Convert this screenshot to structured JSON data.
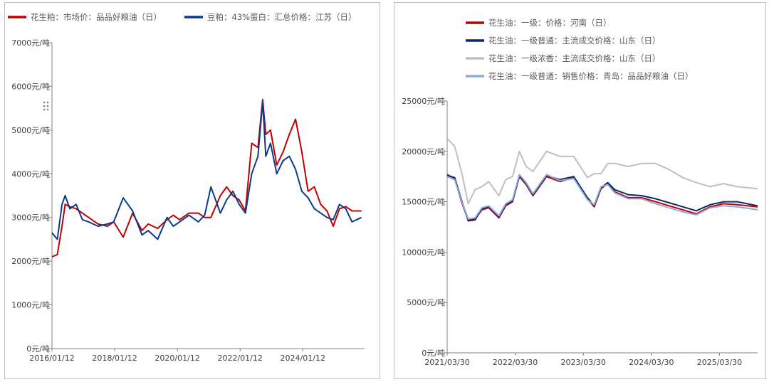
{
  "chart_data": [
    {
      "type": "line",
      "title": "",
      "xlabel": "",
      "ylabel": "",
      "ylim": [
        0,
        7000
      ],
      "y_ticks": [
        "0元/吨",
        "1000元/吨",
        "2000元/吨",
        "3000元/吨",
        "4000元/吨",
        "5000元/吨",
        "6000元/吨",
        "7000元/吨"
      ],
      "x_ticks": [
        "2016/01/12",
        "2018/01/12",
        "2020/01/12",
        "2022/01/12",
        "2024/01/12"
      ],
      "x_tick_values": [
        2016.03,
        2018.03,
        2020.03,
        2022.03,
        2024.03
      ],
      "xlim": [
        2016.03,
        2026.0
      ],
      "legend_position": "top",
      "series": [
        {
          "name": "花生粕：市场价：品品好粮油（日）",
          "color": "#C00000",
          "x": [
            2016.03,
            2016.2,
            2016.35,
            2016.45,
            2016.6,
            2016.8,
            2017.0,
            2017.2,
            2017.5,
            2017.8,
            2018.0,
            2018.3,
            2018.6,
            2018.9,
            2019.1,
            2019.4,
            2019.7,
            2019.9,
            2020.1,
            2020.4,
            2020.7,
            2020.9,
            2021.1,
            2021.4,
            2021.6,
            2021.8,
            2022.0,
            2022.2,
            2022.4,
            2022.6,
            2022.75,
            2022.85,
            2023.0,
            2023.2,
            2023.4,
            2023.6,
            2023.8,
            2024.0,
            2024.2,
            2024.4,
            2024.6,
            2024.8,
            2025.0,
            2025.2,
            2025.4,
            2025.6,
            2025.9
          ],
          "values": [
            2100,
            2150,
            2800,
            3300,
            3250,
            3200,
            3100,
            3000,
            2850,
            2800,
            2900,
            2550,
            3100,
            2700,
            2850,
            2750,
            2950,
            3050,
            2950,
            3100,
            3100,
            3000,
            3000,
            3500,
            3700,
            3500,
            3400,
            3150,
            4700,
            4600,
            5700,
            4900,
            5000,
            4200,
            4500,
            4900,
            5250,
            4500,
            3600,
            3700,
            3300,
            3150,
            2800,
            3200,
            3250,
            3150,
            3150
          ]
        },
        {
          "name": "豆粕：43%蛋白：汇总价格：江苏（日）",
          "color": "#0B3A8C",
          "x": [
            2016.03,
            2016.2,
            2016.35,
            2016.45,
            2016.6,
            2016.8,
            2017.0,
            2017.2,
            2017.5,
            2017.8,
            2018.0,
            2018.3,
            2018.6,
            2018.9,
            2019.1,
            2019.4,
            2019.7,
            2019.9,
            2020.1,
            2020.4,
            2020.7,
            2020.9,
            2021.1,
            2021.4,
            2021.6,
            2021.8,
            2022.0,
            2022.2,
            2022.4,
            2022.6,
            2022.75,
            2022.85,
            2023.0,
            2023.2,
            2023.4,
            2023.6,
            2023.8,
            2024.0,
            2024.2,
            2024.4,
            2024.6,
            2024.8,
            2025.0,
            2025.2,
            2025.4,
            2025.6,
            2025.9
          ],
          "values": [
            2650,
            2500,
            3300,
            3500,
            3200,
            3300,
            2950,
            2900,
            2800,
            2850,
            2900,
            3450,
            3150,
            2600,
            2700,
            2500,
            3000,
            2800,
            2900,
            3050,
            2900,
            3050,
            3700,
            3100,
            3400,
            3600,
            3300,
            3100,
            4000,
            4400,
            5650,
            4400,
            4700,
            4000,
            4300,
            4400,
            4100,
            3600,
            3450,
            3200,
            3100,
            3000,
            2950,
            3300,
            3200,
            2900,
            3000
          ]
        }
      ]
    },
    {
      "type": "line",
      "title": "",
      "xlabel": "",
      "ylabel": "",
      "ylim": [
        0,
        25000
      ],
      "y_ticks": [
        "0元/吨",
        "5000元/吨",
        "10000元/吨",
        "15000元/吨",
        "20000元/吨",
        "25000元/吨"
      ],
      "x_ticks": [
        "2021/03/30",
        "2022/03/30",
        "2023/03/30",
        "2024/03/30",
        "2025/03/30"
      ],
      "x_tick_values": [
        2021.24,
        2022.24,
        2023.24,
        2024.24,
        2025.24
      ],
      "xlim": [
        2021.24,
        2025.8
      ],
      "legend_position": "top",
      "series": [
        {
          "name": "花生油：一级：价格：河南（日）",
          "color": "#C00000",
          "x": [
            2021.24,
            2021.35,
            2021.45,
            2021.55,
            2021.65,
            2021.75,
            2021.85,
            2022.0,
            2022.1,
            2022.2,
            2022.3,
            2022.4,
            2022.5,
            2022.7,
            2022.9,
            2023.1,
            2023.3,
            2023.4,
            2023.5,
            2023.6,
            2023.7,
            2023.9,
            2024.1,
            2024.3,
            2024.5,
            2024.7,
            2024.9,
            2025.1,
            2025.3,
            2025.5,
            2025.8
          ],
          "values": [
            17700,
            17300,
            15000,
            13200,
            13300,
            14200,
            14400,
            13400,
            14600,
            15000,
            17500,
            16700,
            15600,
            17500,
            17000,
            17400,
            15300,
            14500,
            16300,
            16800,
            16000,
            15400,
            15400,
            15000,
            14600,
            14200,
            13800,
            14500,
            14800,
            14700,
            14500
          ]
        },
        {
          "name": "花生油：一级普通：主流成交价格：山东（日）",
          "color": "#0B2A6B",
          "x": [
            2021.24,
            2021.35,
            2021.45,
            2021.55,
            2021.65,
            2021.75,
            2021.85,
            2022.0,
            2022.1,
            2022.2,
            2022.3,
            2022.4,
            2022.5,
            2022.7,
            2022.9,
            2023.1,
            2023.3,
            2023.4,
            2023.5,
            2023.6,
            2023.7,
            2023.9,
            2024.1,
            2024.3,
            2024.5,
            2024.7,
            2024.9,
            2025.1,
            2025.3,
            2025.5,
            2025.8
          ],
          "values": [
            17600,
            17400,
            15200,
            13100,
            13200,
            14300,
            14500,
            13500,
            14700,
            15100,
            17600,
            16800,
            15700,
            17600,
            17200,
            17500,
            15400,
            14600,
            16400,
            16900,
            16200,
            15700,
            15600,
            15300,
            14900,
            14500,
            14100,
            14700,
            15000,
            15000,
            14600
          ]
        },
        {
          "name": "花生油：一级浓香：主流成交价格：山东（日）",
          "color": "#BFBFBF",
          "x": [
            2021.24,
            2021.35,
            2021.45,
            2021.55,
            2021.65,
            2021.75,
            2021.85,
            2022.0,
            2022.1,
            2022.2,
            2022.3,
            2022.4,
            2022.5,
            2022.7,
            2022.9,
            2023.1,
            2023.3,
            2023.4,
            2023.5,
            2023.6,
            2023.7,
            2023.9,
            2024.1,
            2024.3,
            2024.5,
            2024.7,
            2024.9,
            2025.1,
            2025.3,
            2025.5,
            2025.8
          ],
          "values": [
            21300,
            20500,
            18000,
            14800,
            16200,
            16500,
            17000,
            15600,
            17200,
            17500,
            20000,
            18500,
            18000,
            20000,
            19500,
            19500,
            17400,
            17800,
            17800,
            18800,
            18800,
            18500,
            18800,
            18800,
            18200,
            17400,
            16900,
            16500,
            16800,
            16500,
            16300
          ]
        },
        {
          "name": "花生油：一级普通：销售价格：青岛：品品好粮油（日）",
          "color": "#8EA9DB",
          "x": [
            2021.24,
            2021.35,
            2021.45,
            2021.55,
            2021.65,
            2021.75,
            2021.85,
            2022.0,
            2022.1,
            2022.2,
            2022.3,
            2022.4,
            2022.5,
            2022.7,
            2022.9,
            2023.1,
            2023.3,
            2023.4,
            2023.5,
            2023.6,
            2023.7,
            2023.9,
            2024.1,
            2024.3,
            2024.5,
            2024.7,
            2024.9,
            2025.1,
            2025.3,
            2025.5,
            2025.8
          ],
          "values": [
            17500,
            17200,
            15100,
            13300,
            13400,
            14400,
            14600,
            13600,
            14800,
            15200,
            17700,
            16900,
            15800,
            17700,
            17100,
            17300,
            15200,
            14700,
            16500,
            16700,
            15900,
            15300,
            15300,
            14800,
            14400,
            14000,
            13700,
            14400,
            14600,
            14500,
            14200
          ]
        }
      ]
    }
  ]
}
